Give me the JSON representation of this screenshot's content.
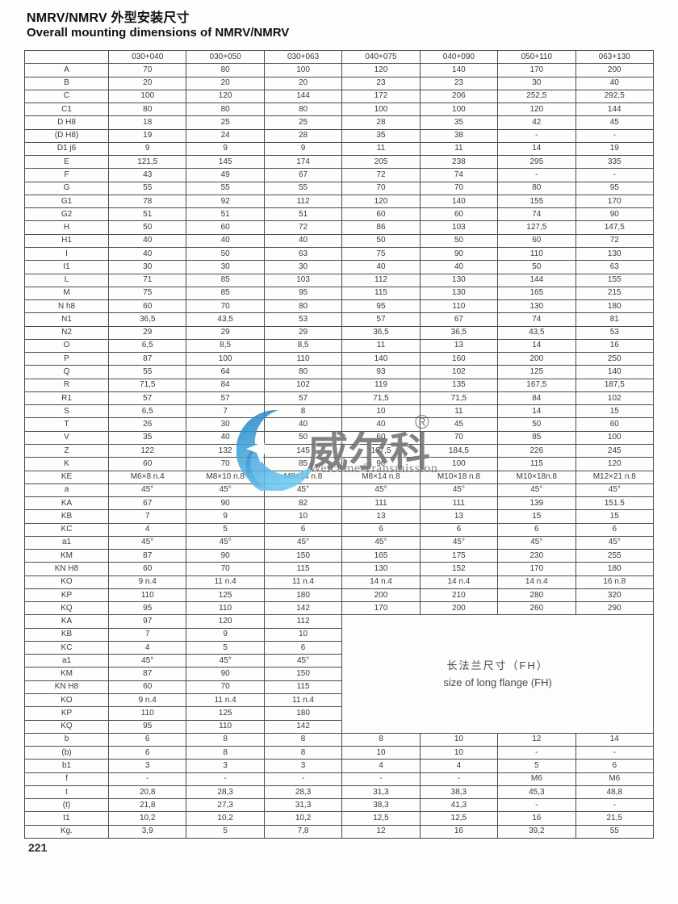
{
  "page": {
    "title_zh": "NMRV/NMRV 外型安装尺寸",
    "title_en": "Overall mounting dimensions of NMRV/NMRV",
    "page_number": "221"
  },
  "watermark": {
    "logo_icon": "crescent-star-logo",
    "brand_zh": "威尔科",
    "registered_mark": "®",
    "brand_en": "Welcome Transmission",
    "logo_color_dark": "#1f7fc2",
    "logo_color_light": "#6cc8f0",
    "text_color": "#8a8a8a"
  },
  "table": {
    "header": [
      "",
      "030+040",
      "030+050",
      "030+063",
      "040+075",
      "040+090",
      "050+110",
      "063+130"
    ],
    "flange_note": {
      "zh": "长法兰尺寸（FH）",
      "en": "size of long flange (FH)"
    },
    "sections": {
      "main": [
        {
          "label": "A",
          "values": [
            "70",
            "80",
            "100",
            "120",
            "140",
            "170",
            "200"
          ]
        },
        {
          "label": "B",
          "values": [
            "20",
            "20",
            "20",
            "23",
            "23",
            "30",
            "40"
          ]
        },
        {
          "label": "C",
          "values": [
            "100",
            "120",
            "144",
            "172",
            "206",
            "252,5",
            "292,5"
          ]
        },
        {
          "label": "C1",
          "values": [
            "80",
            "80",
            "80",
            "100",
            "100",
            "120",
            "144"
          ]
        },
        {
          "label": "D H8",
          "values": [
            "18",
            "25",
            "25",
            "28",
            "35",
            "42",
            "45"
          ]
        },
        {
          "label": "(D H8)",
          "values": [
            "19",
            "24",
            "28",
            "35",
            "38",
            "-",
            "-"
          ]
        },
        {
          "label": "D1 j6",
          "values": [
            "9",
            "9",
            "9",
            "11",
            "11",
            "14",
            "19"
          ]
        },
        {
          "label": "E",
          "values": [
            "121,5",
            "145",
            "174",
            "205",
            "238",
            "295",
            "335"
          ]
        },
        {
          "label": "F",
          "values": [
            "43",
            "49",
            "67",
            "72",
            "74",
            "-",
            "-"
          ]
        },
        {
          "label": "G",
          "values": [
            "55",
            "55",
            "55",
            "70",
            "70",
            "80",
            "95"
          ]
        },
        {
          "label": "G1",
          "values": [
            "78",
            "92",
            "112",
            "120",
            "140",
            "155",
            "170"
          ]
        },
        {
          "label": "G2",
          "values": [
            "51",
            "51",
            "51",
            "60",
            "60",
            "74",
            "90"
          ]
        },
        {
          "label": "H",
          "values": [
            "50",
            "60",
            "72",
            "86",
            "103",
            "127,5",
            "147,5"
          ]
        },
        {
          "label": "H1",
          "values": [
            "40",
            "40",
            "40",
            "50",
            "50",
            "60",
            "72"
          ]
        },
        {
          "label": "I",
          "values": [
            "40",
            "50",
            "63",
            "75",
            "90",
            "110",
            "130"
          ]
        },
        {
          "label": "I1",
          "values": [
            "30",
            "30",
            "30",
            "40",
            "40",
            "50",
            "63"
          ]
        },
        {
          "label": "L",
          "values": [
            "71",
            "85",
            "103",
            "112",
            "130",
            "144",
            "155"
          ]
        },
        {
          "label": "M",
          "values": [
            "75",
            "85",
            "95",
            "115",
            "130",
            "165",
            "215"
          ]
        },
        {
          "label": "N h8",
          "values": [
            "60",
            "70",
            "80",
            "95",
            "110",
            "130",
            "180"
          ]
        },
        {
          "label": "N1",
          "values": [
            "36,5",
            "43,5",
            "53",
            "57",
            "67",
            "74",
            "81"
          ]
        },
        {
          "label": "N2",
          "values": [
            "29",
            "29",
            "29",
            "36,5",
            "36,5",
            "43,5",
            "53"
          ]
        },
        {
          "label": "O",
          "values": [
            "6,5",
            "8,5",
            "8,5",
            "11",
            "13",
            "14",
            "16"
          ]
        },
        {
          "label": "P",
          "values": [
            "87",
            "100",
            "110",
            "140",
            "160",
            "200",
            "250"
          ]
        },
        {
          "label": "Q",
          "values": [
            "55",
            "64",
            "80",
            "93",
            "102",
            "125",
            "140"
          ]
        },
        {
          "label": "R",
          "values": [
            "71,5",
            "84",
            "102",
            "119",
            "135",
            "167,5",
            "187,5"
          ]
        },
        {
          "label": "R1",
          "values": [
            "57",
            "57",
            "57",
            "71,5",
            "71,5",
            "84",
            "102"
          ]
        },
        {
          "label": "S",
          "values": [
            "6,5",
            "7",
            "8",
            "10",
            "11",
            "14",
            "15"
          ]
        },
        {
          "label": "T",
          "values": [
            "26",
            "30",
            "40",
            "40",
            "45",
            "50",
            "60"
          ]
        },
        {
          "label": "V",
          "values": [
            "35",
            "40",
            "50",
            "60",
            "70",
            "85",
            "100"
          ]
        },
        {
          "label": "Z",
          "values": [
            "122",
            "132",
            "145",
            "167,5",
            "184,5",
            "226",
            "245"
          ]
        },
        {
          "label": "K",
          "values": [
            "60",
            "70",
            "85",
            "90",
            "100",
            "115",
            "120"
          ]
        },
        {
          "label": "KE",
          "values": [
            "M6×8 n.4",
            "M8×10 n.8",
            "M8×14 n.8",
            "M8×14 n.8",
            "M10×18 n.8",
            "M10×18n.8",
            "M12×21 n.8"
          ]
        },
        {
          "label": "a",
          "values": [
            "45°",
            "45°",
            "45°",
            "45°",
            "45°",
            "45°",
            "45°"
          ]
        },
        {
          "label": "KA",
          "values": [
            "67",
            "90",
            "82",
            "111",
            "111",
            "139",
            "151.5"
          ]
        },
        {
          "label": "KB",
          "values": [
            "7",
            "9",
            "10",
            "13",
            "13",
            "15",
            "15"
          ]
        },
        {
          "label": "KC",
          "values": [
            "4",
            "5",
            "6",
            "6",
            "6",
            "6",
            "6"
          ]
        },
        {
          "label": "a1",
          "values": [
            "45°",
            "45°",
            "45°",
            "45°",
            "45°",
            "45°",
            "45°"
          ]
        },
        {
          "label": "KM",
          "values": [
            "87",
            "90",
            "150",
            "165",
            "175",
            "230",
            "255"
          ]
        },
        {
          "label": "KN H8",
          "values": [
            "60",
            "70",
            "115",
            "130",
            "152",
            "170",
            "180"
          ]
        },
        {
          "label": "KO",
          "values": [
            "9 n.4",
            "11 n.4",
            "11 n.4",
            "14 n.4",
            "14 n.4",
            "14 n.4",
            "16 n.8"
          ]
        },
        {
          "label": "KP",
          "values": [
            "110",
            "125",
            "180",
            "200",
            "210",
            "280",
            "320"
          ]
        },
        {
          "label": "KQ",
          "values": [
            "95",
            "110",
            "142",
            "170",
            "200",
            "260",
            "290"
          ]
        }
      ],
      "flange_short": [
        {
          "label": "KA",
          "values": [
            "97",
            "120",
            "112"
          ]
        },
        {
          "label": "KB",
          "values": [
            "7",
            "9",
            "10"
          ]
        },
        {
          "label": "KC",
          "values": [
            "4",
            "5",
            "6"
          ]
        },
        {
          "label": "a1",
          "values": [
            "45°",
            "45°",
            "45°"
          ]
        },
        {
          "label": "KM",
          "values": [
            "87",
            "90",
            "150"
          ]
        },
        {
          "label": "KN H8",
          "values": [
            "60",
            "70",
            "115"
          ]
        },
        {
          "label": "KO",
          "values": [
            "9 n.4",
            "11 n.4",
            "11 n.4"
          ]
        },
        {
          "label": "KP",
          "values": [
            "110",
            "125",
            "180"
          ]
        },
        {
          "label": "KQ",
          "values": [
            "95",
            "110",
            "142"
          ]
        }
      ],
      "bottom": [
        {
          "label": "b",
          "values": [
            "6",
            "8",
            "8",
            "8",
            "10",
            "12",
            "14"
          ]
        },
        {
          "label": "(b)",
          "values": [
            "6",
            "8",
            "8",
            "10",
            "10",
            "-",
            "-"
          ]
        },
        {
          "label": "b1",
          "values": [
            "3",
            "3",
            "3",
            "4",
            "4",
            "5",
            "6"
          ]
        },
        {
          "label": "f",
          "values": [
            "-",
            "-",
            "-",
            "-",
            "-",
            "M6",
            "M6"
          ]
        },
        {
          "label": "t",
          "values": [
            "20,8",
            "28,3",
            "28,3",
            "31,3",
            "38,3",
            "45,3",
            "48,8"
          ]
        },
        {
          "label": "(t)",
          "values": [
            "21,8",
            "27,3",
            "31,3",
            "38,3",
            "41,3",
            "-",
            "-"
          ]
        },
        {
          "label": "t1",
          "values": [
            "10,2",
            "10,2",
            "10,2",
            "12,5",
            "12,5",
            "16",
            "21,5"
          ]
        },
        {
          "label": "Kg.",
          "values": [
            "3,9",
            "5",
            "7,8",
            "12",
            "16",
            "39,2",
            "55"
          ]
        }
      ]
    }
  }
}
